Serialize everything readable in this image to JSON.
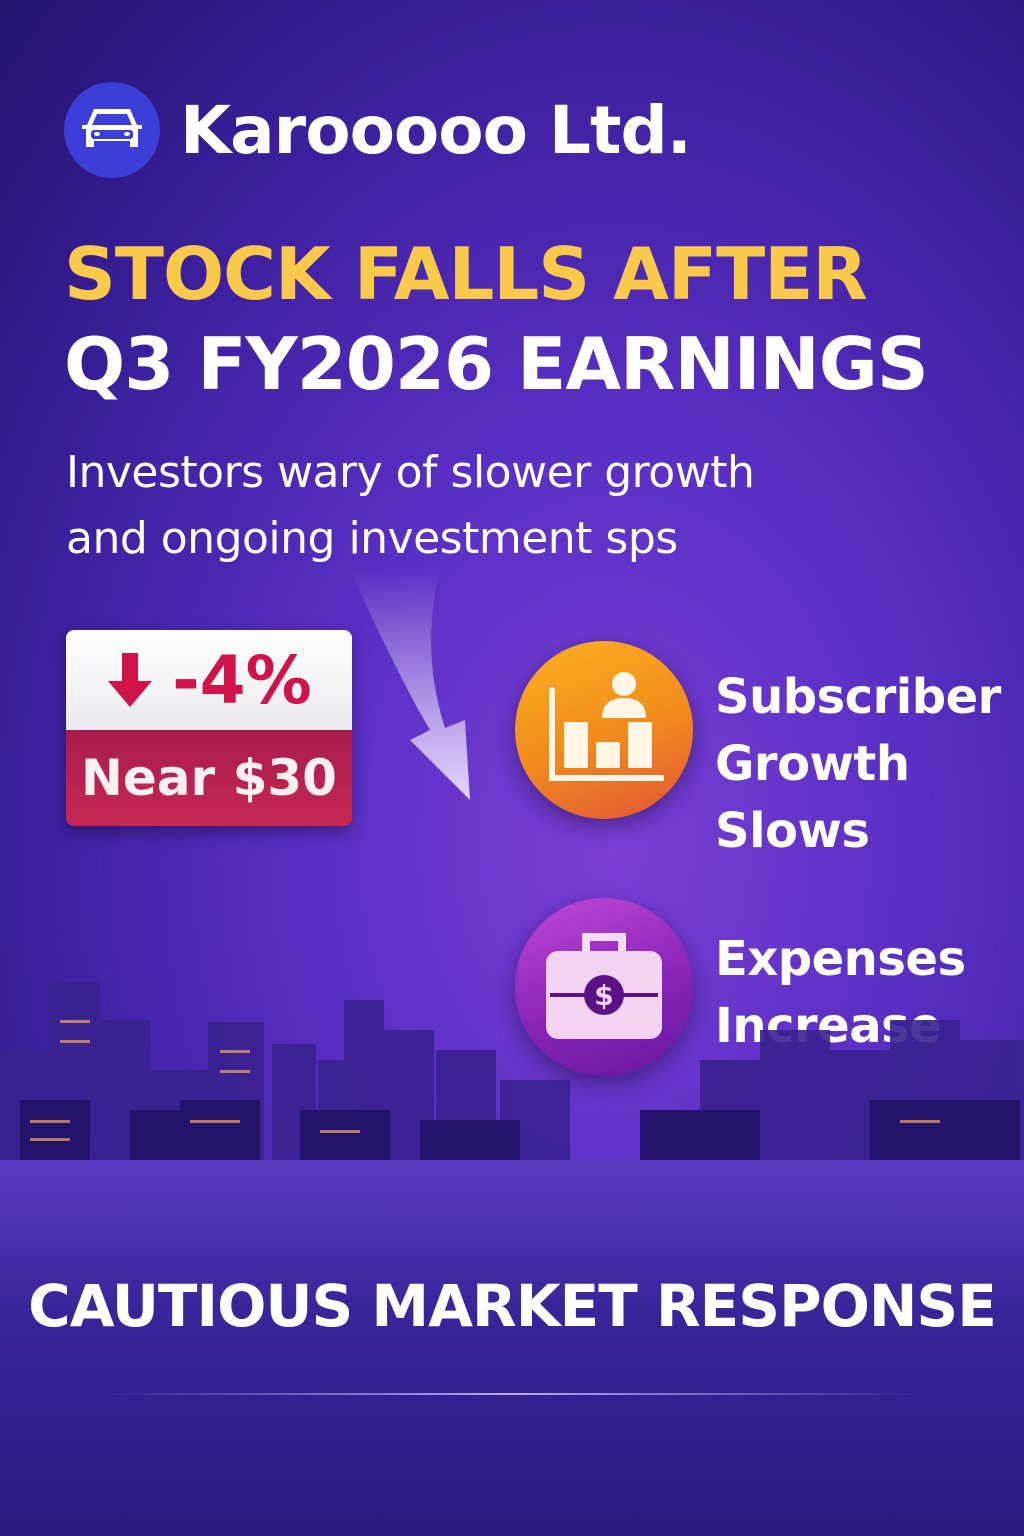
{
  "brand": {
    "name": "Karooooo Ltd.",
    "icon": "car-icon",
    "color": "#3d3fd8"
  },
  "headline": {
    "line1": "STOCK FALLS AFTER",
    "line2": "Q3 FY2026 EARNINGS",
    "line1_color": "#f8c94a"
  },
  "subtitle": {
    "line1": "Investors wary of slower growth",
    "line2": "and ongoing investment sps"
  },
  "stock_badge": {
    "change": "-4%",
    "icon": "arrow-down-icon",
    "price": "Near $30",
    "accent": "#d0144a"
  },
  "points": [
    {
      "icon": "subscriber-chart-icon",
      "lines": [
        "Subscriber",
        "Growth",
        "Slows"
      ],
      "color": "#f59a1e"
    },
    {
      "icon": "briefcase-dollar-icon",
      "lines": [
        "Expenses",
        "Increase"
      ],
      "color": "#9a2cc4"
    }
  ],
  "footer": {
    "text": "CAUTIOUS MARKET RESPONSE"
  }
}
